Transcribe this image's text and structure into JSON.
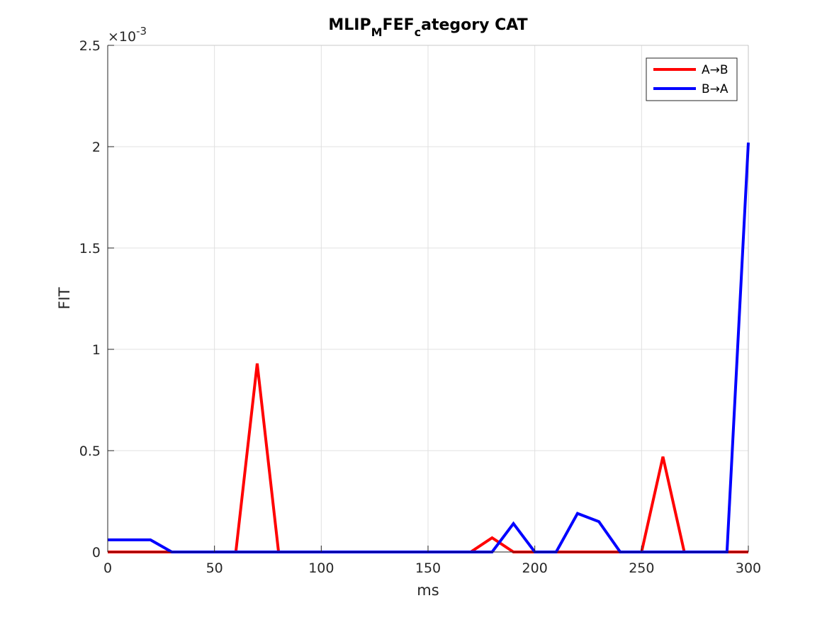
{
  "chart_data": {
    "type": "line",
    "title": {
      "parts": [
        {
          "text": "MLIP",
          "sub": false
        },
        {
          "text": "M",
          "sub": true
        },
        {
          "text": "FEF",
          "sub": false
        },
        {
          "text": "c",
          "sub": true
        },
        {
          "text": "ategory CAT",
          "sub": false
        }
      ]
    },
    "xlabel": "ms",
    "ylabel": "FIT",
    "exponent_label": {
      "base": "×10",
      "power": "-3"
    },
    "xlim": [
      0,
      300
    ],
    "ylim": [
      0,
      2.5
    ],
    "xticks": [
      0,
      50,
      100,
      150,
      200,
      250,
      300
    ],
    "yticks": [
      0,
      0.5,
      1,
      1.5,
      2,
      2.5
    ],
    "ytick_labels": [
      "0",
      "0.5",
      "1",
      "1.5",
      "2",
      "2.5"
    ],
    "grid": true,
    "legend_position": "top-right",
    "x": [
      0,
      10,
      20,
      30,
      40,
      50,
      60,
      70,
      80,
      90,
      100,
      110,
      120,
      130,
      140,
      150,
      160,
      170,
      180,
      190,
      200,
      210,
      220,
      230,
      240,
      250,
      260,
      270,
      280,
      290,
      300
    ],
    "series": [
      {
        "name": "A→B",
        "color": "#ff0000",
        "values": [
          0,
          0,
          0,
          0,
          0,
          0,
          0,
          0.93,
          0,
          0,
          0,
          0,
          0,
          0,
          0,
          0,
          0,
          0,
          0.07,
          0,
          0,
          0,
          0,
          0,
          0,
          0,
          0.47,
          0,
          0,
          0,
          0
        ]
      },
      {
        "name": "B→A",
        "color": "#0000ff",
        "values": [
          0.06,
          0.06,
          0.06,
          0,
          0,
          0,
          0,
          0,
          0,
          0,
          0,
          0,
          0,
          0,
          0,
          0,
          0,
          0,
          0,
          0.14,
          0,
          0,
          0.19,
          0.15,
          0,
          0,
          0,
          0,
          0,
          0,
          2.02
        ]
      }
    ]
  }
}
